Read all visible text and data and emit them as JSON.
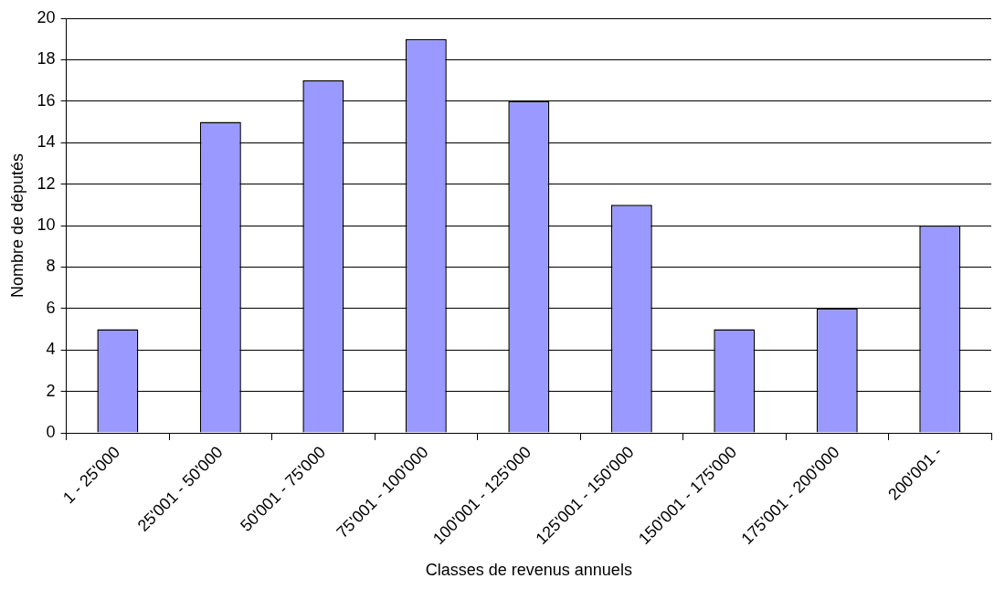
{
  "chart_data": {
    "type": "bar",
    "xlabel": "Classes de revenus annuels",
    "ylabel": "Nombre de députés",
    "categories": [
      "1 - 25'000",
      "25'001 - 50'000",
      "50'001 - 75'000",
      "75'001 - 100'000",
      "100'001 - 125'000",
      "125'001 - 150'000",
      "150'001 - 175'000",
      "175'001 - 200'000",
      "200'001 -"
    ],
    "values": [
      5,
      15,
      17,
      19,
      16,
      11,
      5,
      6,
      10
    ],
    "color": "#9999ff",
    "ylim": [
      0,
      20
    ],
    "yticks": [
      0,
      2,
      4,
      6,
      8,
      10,
      12,
      14,
      16,
      18,
      20
    ],
    "grid": "y",
    "legend": false
  }
}
